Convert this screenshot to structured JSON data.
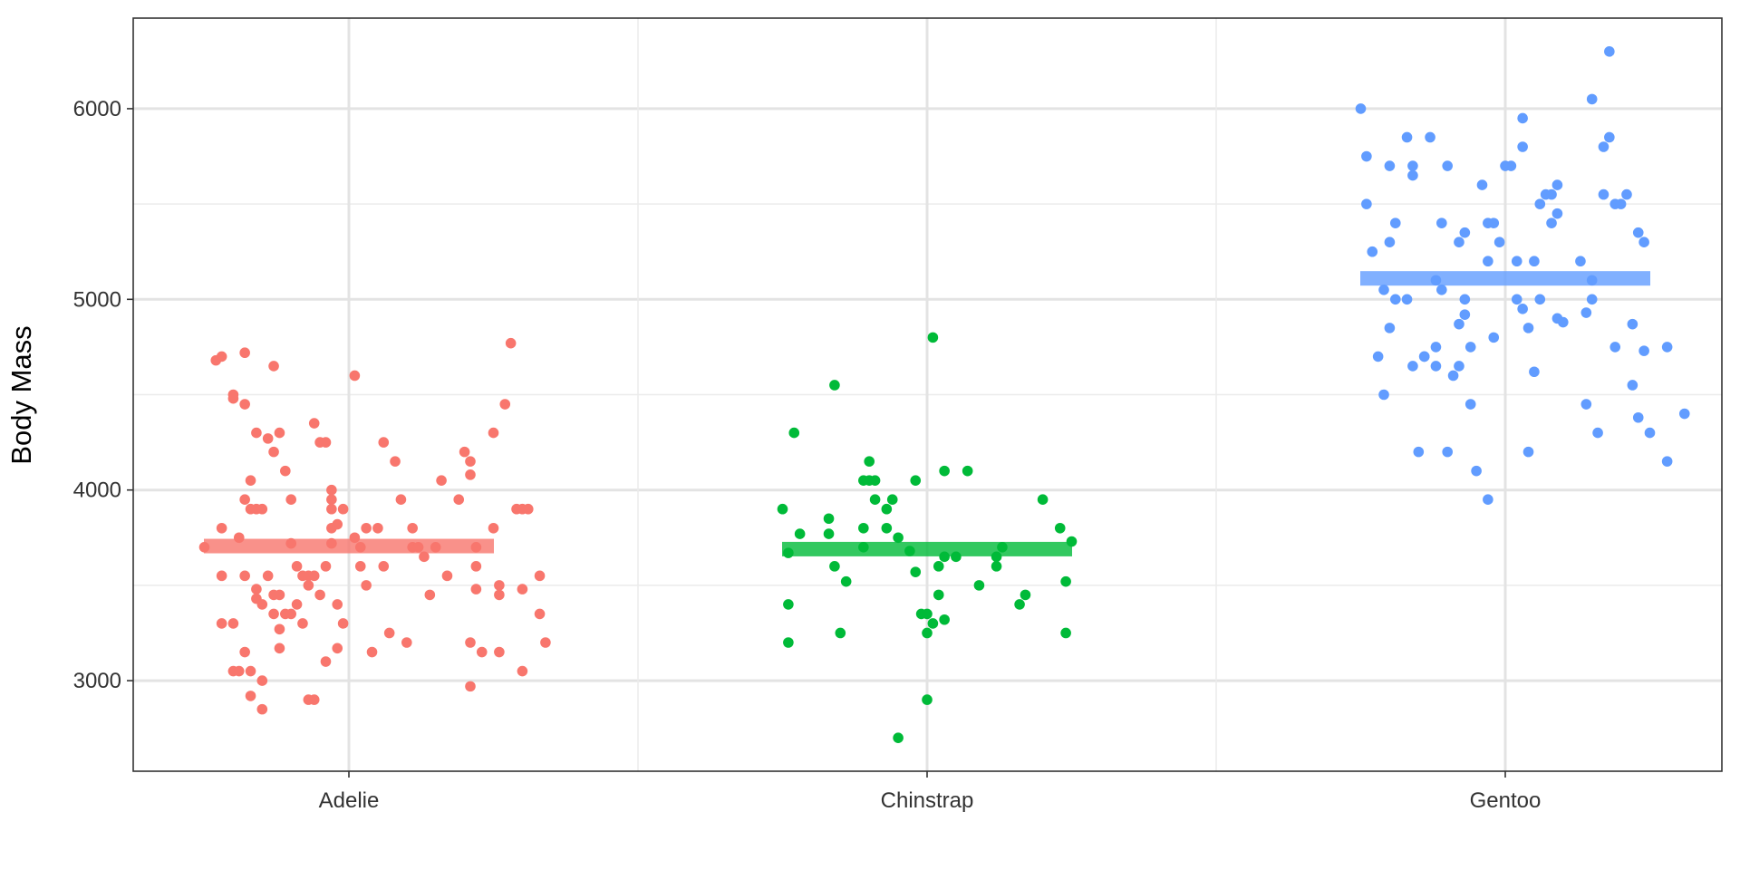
{
  "chart_data": {
    "type": "scatter",
    "subtype": "jitter-strip-with-mean-bars",
    "title": "",
    "xlabel": "",
    "ylabel": "Body Mass",
    "categories": [
      "Adelie",
      "Chinstrap",
      "Gentoo"
    ],
    "ylim": [
      2525,
      6475
    ],
    "yticks": [
      3000,
      4000,
      5000,
      6000
    ],
    "yticks_minor": [
      3500,
      4500,
      5500
    ],
    "grid": true,
    "legend": "none",
    "colors": {
      "Adelie": "#F8766D",
      "Chinstrap": "#00BA38",
      "Gentoo": "#619CFF"
    },
    "means": {
      "Adelie": 3706,
      "Chinstrap": 3690,
      "Gentoo": 5110
    },
    "series": [
      {
        "category": "Adelie",
        "points": [
          [
            -0.25,
            3700
          ],
          [
            -0.23,
            4680
          ],
          [
            -0.22,
            4700
          ],
          [
            -0.22,
            3800
          ],
          [
            -0.22,
            3550
          ],
          [
            -0.22,
            3300
          ],
          [
            -0.2,
            4500
          ],
          [
            -0.2,
            4480
          ],
          [
            -0.2,
            3300
          ],
          [
            -0.2,
            3050
          ],
          [
            -0.19,
            3050
          ],
          [
            -0.19,
            3750
          ],
          [
            -0.18,
            3550
          ],
          [
            -0.18,
            4720
          ],
          [
            -0.18,
            3950
          ],
          [
            -0.18,
            4450
          ],
          [
            -0.18,
            3150
          ],
          [
            -0.17,
            2920
          ],
          [
            -0.17,
            3050
          ],
          [
            -0.17,
            4050
          ],
          [
            -0.17,
            3900
          ],
          [
            -0.16,
            3900
          ],
          [
            -0.16,
            4300
          ],
          [
            -0.16,
            3480
          ],
          [
            -0.16,
            3430
          ],
          [
            -0.15,
            3900
          ],
          [
            -0.15,
            3400
          ],
          [
            -0.15,
            3000
          ],
          [
            -0.15,
            2850
          ],
          [
            -0.14,
            3550
          ],
          [
            -0.14,
            4270
          ],
          [
            -0.13,
            4650
          ],
          [
            -0.13,
            4200
          ],
          [
            -0.13,
            3350
          ],
          [
            -0.13,
            3450
          ],
          [
            -0.12,
            4300
          ],
          [
            -0.12,
            3450
          ],
          [
            -0.12,
            3270
          ],
          [
            -0.12,
            3170
          ],
          [
            -0.11,
            4100
          ],
          [
            -0.11,
            3350
          ],
          [
            -0.1,
            3950
          ],
          [
            -0.1,
            3720
          ],
          [
            -0.1,
            3350
          ],
          [
            -0.09,
            3600
          ],
          [
            -0.09,
            3400
          ],
          [
            -0.08,
            3550
          ],
          [
            -0.08,
            3300
          ],
          [
            -0.07,
            3500
          ],
          [
            -0.07,
            3550
          ],
          [
            -0.07,
            2900
          ],
          [
            -0.06,
            2900
          ],
          [
            -0.06,
            3550
          ],
          [
            -0.06,
            4350
          ],
          [
            -0.05,
            4250
          ],
          [
            -0.05,
            3450
          ],
          [
            -0.04,
            4250
          ],
          [
            -0.04,
            3600
          ],
          [
            -0.04,
            3100
          ],
          [
            -0.03,
            4000
          ],
          [
            -0.03,
            3950
          ],
          [
            -0.03,
            3900
          ],
          [
            -0.03,
            3800
          ],
          [
            -0.03,
            3720
          ],
          [
            -0.02,
            3820
          ],
          [
            -0.02,
            3400
          ],
          [
            -0.02,
            3170
          ],
          [
            -0.01,
            3900
          ],
          [
            -0.01,
            3300
          ],
          [
            0.01,
            4600
          ],
          [
            0.01,
            3750
          ],
          [
            0.02,
            3700
          ],
          [
            0.02,
            3600
          ],
          [
            0.03,
            3800
          ],
          [
            0.03,
            3500
          ],
          [
            0.04,
            3150
          ],
          [
            0.05,
            3800
          ],
          [
            0.06,
            4250
          ],
          [
            0.06,
            3600
          ],
          [
            0.07,
            3250
          ],
          [
            0.08,
            4150
          ],
          [
            0.09,
            3950
          ],
          [
            0.1,
            3200
          ],
          [
            0.11,
            3700
          ],
          [
            0.11,
            3800
          ],
          [
            0.12,
            3700
          ],
          [
            0.13,
            3650
          ],
          [
            0.14,
            3450
          ],
          [
            0.15,
            3700
          ],
          [
            0.16,
            4050
          ],
          [
            0.17,
            3550
          ],
          [
            0.19,
            3950
          ],
          [
            0.2,
            4200
          ],
          [
            0.21,
            4150
          ],
          [
            0.21,
            4080
          ],
          [
            0.21,
            3200
          ],
          [
            0.21,
            2970
          ],
          [
            0.22,
            3700
          ],
          [
            0.22,
            3600
          ],
          [
            0.22,
            3480
          ],
          [
            0.23,
            3150
          ],
          [
            0.25,
            3800
          ],
          [
            0.25,
            4300
          ],
          [
            0.26,
            3450
          ],
          [
            0.26,
            3500
          ],
          [
            0.26,
            3150
          ],
          [
            0.27,
            4450
          ],
          [
            0.28,
            4770
          ],
          [
            0.29,
            3900
          ],
          [
            0.3,
            3900
          ],
          [
            0.3,
            3480
          ],
          [
            0.3,
            3050
          ],
          [
            0.31,
            3900
          ],
          [
            0.33,
            3550
          ],
          [
            0.33,
            3350
          ],
          [
            0.34,
            3200
          ]
        ]
      },
      {
        "category": "Chinstrap",
        "points": [
          [
            -0.25,
            3900
          ],
          [
            -0.24,
            3670
          ],
          [
            -0.24,
            3400
          ],
          [
            -0.24,
            3200
          ],
          [
            -0.23,
            4300
          ],
          [
            -0.22,
            3770
          ],
          [
            -0.17,
            3850
          ],
          [
            -0.17,
            3770
          ],
          [
            -0.16,
            4550
          ],
          [
            -0.16,
            3600
          ],
          [
            -0.15,
            3250
          ],
          [
            -0.14,
            3520
          ],
          [
            -0.11,
            3800
          ],
          [
            -0.11,
            3700
          ],
          [
            -0.11,
            4050
          ],
          [
            -0.1,
            4050
          ],
          [
            -0.1,
            4150
          ],
          [
            -0.09,
            4050
          ],
          [
            -0.09,
            3950
          ],
          [
            -0.07,
            3800
          ],
          [
            -0.07,
            3900
          ],
          [
            -0.06,
            3950
          ],
          [
            -0.05,
            3750
          ],
          [
            -0.05,
            2700
          ],
          [
            -0.03,
            3680
          ],
          [
            -0.02,
            3570
          ],
          [
            -0.02,
            4050
          ],
          [
            -0.01,
            3350
          ],
          [
            0.0,
            3350
          ],
          [
            0.0,
            3250
          ],
          [
            0.0,
            2900
          ],
          [
            0.01,
            4800
          ],
          [
            0.01,
            3300
          ],
          [
            0.02,
            3600
          ],
          [
            0.02,
            3450
          ],
          [
            0.03,
            3320
          ],
          [
            0.03,
            3650
          ],
          [
            0.03,
            4100
          ],
          [
            0.05,
            3650
          ],
          [
            0.07,
            4100
          ],
          [
            0.09,
            3500
          ],
          [
            0.12,
            3650
          ],
          [
            0.12,
            3600
          ],
          [
            0.13,
            3700
          ],
          [
            0.16,
            3400
          ],
          [
            0.17,
            3450
          ],
          [
            0.2,
            3950
          ],
          [
            0.23,
            3800
          ],
          [
            0.24,
            3520
          ],
          [
            0.24,
            3250
          ],
          [
            0.25,
            3730
          ]
        ]
      },
      {
        "category": "Gentoo",
        "points": [
          [
            -0.25,
            6000
          ],
          [
            -0.24,
            5750
          ],
          [
            -0.24,
            5500
          ],
          [
            -0.23,
            5250
          ],
          [
            -0.22,
            4700
          ],
          [
            -0.21,
            5050
          ],
          [
            -0.21,
            4500
          ],
          [
            -0.2,
            5700
          ],
          [
            -0.2,
            4850
          ],
          [
            -0.2,
            5300
          ],
          [
            -0.19,
            5000
          ],
          [
            -0.19,
            5400
          ],
          [
            -0.17,
            5000
          ],
          [
            -0.17,
            5850
          ],
          [
            -0.16,
            5700
          ],
          [
            -0.16,
            5650
          ],
          [
            -0.16,
            4650
          ],
          [
            -0.15,
            4200
          ],
          [
            -0.14,
            4700
          ],
          [
            -0.14,
            4700
          ],
          [
            -0.13,
            5850
          ],
          [
            -0.12,
            5100
          ],
          [
            -0.12,
            4650
          ],
          [
            -0.12,
            4750
          ],
          [
            -0.11,
            5050
          ],
          [
            -0.11,
            5400
          ],
          [
            -0.1,
            4200
          ],
          [
            -0.1,
            5700
          ],
          [
            -0.09,
            4600
          ],
          [
            -0.08,
            4650
          ],
          [
            -0.08,
            5300
          ],
          [
            -0.08,
            4870
          ],
          [
            -0.07,
            5350
          ],
          [
            -0.07,
            5000
          ],
          [
            -0.07,
            4920
          ],
          [
            -0.06,
            4750
          ],
          [
            -0.06,
            4450
          ],
          [
            -0.05,
            4100
          ],
          [
            -0.04,
            5600
          ],
          [
            -0.03,
            5400
          ],
          [
            -0.03,
            5200
          ],
          [
            -0.03,
            3950
          ],
          [
            -0.02,
            4800
          ],
          [
            -0.02,
            5400
          ],
          [
            -0.01,
            5300
          ],
          [
            0.0,
            5700
          ],
          [
            0.01,
            5700
          ],
          [
            0.02,
            5000
          ],
          [
            0.02,
            5200
          ],
          [
            0.03,
            4950
          ],
          [
            0.03,
            5950
          ],
          [
            0.03,
            5800
          ],
          [
            0.04,
            4850
          ],
          [
            0.04,
            4200
          ],
          [
            0.05,
            4620
          ],
          [
            0.05,
            5200
          ],
          [
            0.06,
            5000
          ],
          [
            0.06,
            5500
          ],
          [
            0.07,
            5550
          ],
          [
            0.08,
            5550
          ],
          [
            0.08,
            5400
          ],
          [
            0.09,
            5450
          ],
          [
            0.09,
            4900
          ],
          [
            0.09,
            5600
          ],
          [
            0.1,
            4880
          ],
          [
            0.13,
            5200
          ],
          [
            0.14,
            4930
          ],
          [
            0.14,
            4450
          ],
          [
            0.15,
            5100
          ],
          [
            0.15,
            5000
          ],
          [
            0.15,
            6050
          ],
          [
            0.16,
            4300
          ],
          [
            0.17,
            5550
          ],
          [
            0.17,
            5800
          ],
          [
            0.18,
            6300
          ],
          [
            0.18,
            5850
          ],
          [
            0.19,
            5500
          ],
          [
            0.19,
            4750
          ],
          [
            0.2,
            5500
          ],
          [
            0.21,
            5550
          ],
          [
            0.22,
            4550
          ],
          [
            0.22,
            4870
          ],
          [
            0.23,
            5350
          ],
          [
            0.23,
            4380
          ],
          [
            0.24,
            5300
          ],
          [
            0.24,
            4730
          ],
          [
            0.25,
            4300
          ],
          [
            0.28,
            4750
          ],
          [
            0.28,
            4150
          ],
          [
            0.31,
            4400
          ]
        ]
      }
    ]
  }
}
